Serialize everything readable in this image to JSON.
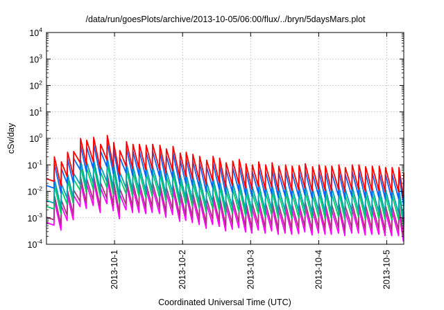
{
  "chart_data": {
    "type": "line",
    "title": "/data/run/goesPlots/archive/2013-10-05/06:00/flux/../bryn/5daysMars.plot",
    "xlabel": "Coordinated Universal Time (UTC)",
    "ylabel": "cSv/day",
    "yscale": "log",
    "ylim": [
      0.0001,
      10000
    ],
    "xlim": [
      "2013-09-30T00:00",
      "2013-10-05T06:00"
    ],
    "grid": true,
    "legend": "none",
    "y_ticks": [
      {
        "base": "10",
        "exp": "-4",
        "value": 0.0001
      },
      {
        "base": "10",
        "exp": "-3",
        "value": 0.001
      },
      {
        "base": "10",
        "exp": "-2",
        "value": 0.01
      },
      {
        "base": "10",
        "exp": "-1",
        "value": 0.1
      },
      {
        "base": "10",
        "exp": "0",
        "value": 1
      },
      {
        "base": "10",
        "exp": "1",
        "value": 10
      },
      {
        "base": "10",
        "exp": "2",
        "value": 100
      },
      {
        "base": "10",
        "exp": "3",
        "value": 1000
      },
      {
        "base": "10",
        "exp": "4",
        "value": 10000
      }
    ],
    "x_ticks": [
      {
        "label": "2013-10-1",
        "value": "2013-10-01T00:00"
      },
      {
        "label": "2013-10-2",
        "value": "2013-10-02T00:00"
      },
      {
        "label": "2013-10-3",
        "value": "2013-10-03T00:00"
      },
      {
        "label": "2013-10-4",
        "value": "2013-10-04T00:00"
      },
      {
        "label": "2013-10-5",
        "value": "2013-10-05T00:00"
      }
    ],
    "series": [
      {
        "color": "#ff0000",
        "peaks": [
          "2013-09-30T00:00|0.03",
          "2013-09-30T02:48|0.2",
          "2013-09-30T05:16|0.13",
          "2013-09-30T07:26|0.3",
          "2013-09-30T09:36|0.32",
          "2013-09-30T12:01|1.0",
          "2013-09-30T14:11|0.85",
          "2013-09-30T16:38|1.1",
          "2013-09-30T19:05|0.6",
          "2013-09-30T21:26|1.3",
          "2013-09-30T23:43|0.7",
          "2013-10-01T01:52|0.35",
          "2013-10-01T04:12|0.75",
          "2013-10-01T06:30|0.6",
          "2013-10-01T08:46|0.6",
          "2013-10-01T11:10|0.55",
          "2013-10-01T13:26|0.6",
          "2013-10-01T16:00|0.55",
          "2013-10-01T18:17|0.4",
          "2013-10-01T20:38|0.5",
          "2013-10-01T23:09|0.28",
          "2013-10-02T01:17|0.3",
          "2013-10-02T03:38|0.25",
          "2013-10-02T06:01|0.21",
          "2013-10-02T08:28|0.15",
          "2013-10-02T10:44|0.21",
          "2013-10-02T13:04|0.18",
          "2013-10-02T15:21|0.12",
          "2013-10-02T17:41|0.14",
          "2013-10-02T19:58|0.16",
          "2013-10-02T22:22|0.11",
          "2013-10-03T00:36|0.1",
          "2013-10-03T02:50|0.13",
          "2013-10-03T05:17|0.1",
          "2013-10-03T07:34|0.12",
          "2013-10-03T09:54|0.09",
          "2013-10-03T12:18|0.1",
          "2013-10-03T14:38|0.09",
          "2013-10-03T17:05|0.095",
          "2013-10-03T19:15|0.11",
          "2013-10-03T21:49|0.085",
          "2013-10-04T00:06|0.1",
          "2013-10-04T02:23|0.09",
          "2013-10-04T04:36|0.09",
          "2013-10-04T07:08|0.1",
          "2013-10-04T09:22|0.08",
          "2013-10-04T11:49|0.1",
          "2013-10-04T14:12|0.1",
          "2013-10-04T16:33|0.085",
          "2013-10-04T18:53|0.09",
          "2013-10-04T21:20|0.09",
          "2013-10-04T23:34|0.08",
          "2013-10-05T01:54|0.08",
          "2013-10-05T04:18|0.08",
          "2013-10-05T06:00|0.05"
        ]
      },
      {
        "color": "#0066ff",
        "factor": 0.55
      },
      {
        "color": "#00a0b0",
        "factor": 0.15
      },
      {
        "color": "#00cc66",
        "factor": 0.09
      },
      {
        "color": "#b03080",
        "factor": 0.035
      },
      {
        "color": "#ff00ff",
        "factor": 0.022
      }
    ]
  }
}
